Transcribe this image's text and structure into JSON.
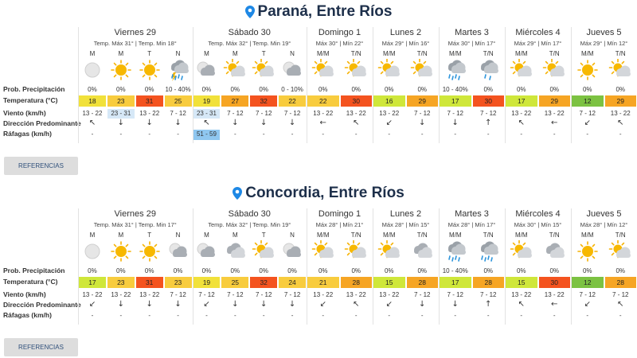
{
  "row_labels": [
    "Prob. Precipitación",
    "Temperatura (°C)",
    "Viento (km/h)",
    "Dirección Predominante",
    "Ráfagas (km/h)"
  ],
  "locations": [
    {
      "title": "Paraná, Entre Ríos",
      "button": "REFERENCIAS",
      "days": [
        {
          "name": "Viernes 29",
          "summary": "Temp. Máx 31° | Temp. Min 18°",
          "periods": [
            "M",
            "M",
            "T",
            "N"
          ],
          "precipitation": [
            "0%",
            "0%",
            "0%",
            "10 - 40%"
          ],
          "temperature": [
            18,
            23,
            31,
            25
          ],
          "wind": [
            "13 - 22",
            "23 - 31",
            "13 - 22",
            "7 - 12"
          ],
          "direction": [
            "↖",
            "↓",
            "↓",
            "↓"
          ],
          "gusts": [
            "-",
            "-",
            "-",
            "-"
          ]
        },
        {
          "name": "Sábado 30",
          "summary": "Temp. Máx 32° | Temp. Min 19°",
          "periods": [
            "M",
            "M",
            "T",
            "N"
          ],
          "precipitation": [
            "0%",
            "0%",
            "0%",
            "0 - 10%"
          ],
          "temperature": [
            19,
            27,
            32,
            22
          ],
          "wind": [
            "23 - 31",
            "7 - 12",
            "7 - 12",
            "7 - 12"
          ],
          "direction": [
            "↖",
            "↓",
            "↓",
            "↓"
          ],
          "gusts": [
            "51 - 59",
            "-",
            "-",
            "-"
          ]
        },
        {
          "name": "Domingo 1",
          "summary": "Máx 30° | Mín 22°",
          "periods": [
            "M/M",
            "T/N"
          ],
          "precipitation": [
            "0%",
            "0%"
          ],
          "temperature": [
            22,
            30
          ],
          "wind": [
            "13 - 22",
            "13 - 22"
          ],
          "direction": [
            "←",
            "↖"
          ],
          "gusts": [
            "-",
            "-"
          ]
        },
        {
          "name": "Lunes 2",
          "summary": "Máx 29° | Mín 16°",
          "periods": [
            "M/M",
            "T/N"
          ],
          "precipitation": [
            "0%",
            "0%"
          ],
          "temperature": [
            16,
            29
          ],
          "wind": [
            "13 - 22",
            "7 - 12"
          ],
          "direction": [
            "↙",
            "↓"
          ],
          "gusts": [
            "-",
            "-"
          ]
        },
        {
          "name": "Martes 3",
          "summary": "Máx 30° | Mín 17°",
          "periods": [
            "M/M",
            "T/N"
          ],
          "precipitation": [
            "10 - 40%",
            "0%"
          ],
          "temperature": [
            17,
            30
          ],
          "wind": [
            "7 - 12",
            "7 - 12"
          ],
          "direction": [
            "↓",
            "↑"
          ],
          "gusts": [
            "-",
            "-"
          ]
        },
        {
          "name": "Miércoles 4",
          "summary": "Máx 29° | Mín 17°",
          "periods": [
            "M/M",
            "T/N"
          ],
          "precipitation": [
            "0%",
            "0%"
          ],
          "temperature": [
            17,
            29
          ],
          "wind": [
            "13 - 22",
            "13 - 22"
          ],
          "direction": [
            "↖",
            "←"
          ],
          "gusts": [
            "-",
            "-"
          ]
        },
        {
          "name": "Jueves 5",
          "summary": "Máx 29° | Mín 12°",
          "periods": [
            "M/M",
            "T/N"
          ],
          "precipitation": [
            "0%",
            "0%"
          ],
          "temperature": [
            12,
            29
          ],
          "wind": [
            "7 - 12",
            "13 - 22"
          ],
          "direction": [
            "↙",
            "↖"
          ],
          "gusts": [
            "-",
            "-"
          ]
        }
      ]
    },
    {
      "title": "Concordia, Entre Ríos",
      "button": "REFERENCIAS",
      "days": [
        {
          "name": "Viernes 29",
          "summary": "Temp. Máx 31° | Temp. Min 17°",
          "periods": [
            "M",
            "M",
            "T",
            "N"
          ],
          "precipitation": [
            "0%",
            "0%",
            "0%",
            "0%"
          ],
          "temperature": [
            17,
            23,
            31,
            23
          ],
          "wind": [
            "13 - 22",
            "13 - 22",
            "13 - 22",
            "7 - 12"
          ],
          "direction": [
            "↙",
            "↓",
            "↓",
            "↓"
          ],
          "gusts": [
            "-",
            "-",
            "-",
            "-"
          ]
        },
        {
          "name": "Sábado 30",
          "summary": "Temp. Máx 32° | Temp. Min 19°",
          "periods": [
            "M",
            "M",
            "T",
            "N"
          ],
          "precipitation": [
            "0%",
            "0%",
            "0%",
            "0%"
          ],
          "temperature": [
            19,
            25,
            32,
            24
          ],
          "wind": [
            "7 - 12",
            "7 - 12",
            "7 - 12",
            "7 - 12"
          ],
          "direction": [
            "↙",
            "↓",
            "↓",
            "↓"
          ],
          "gusts": [
            "-",
            "-",
            "-",
            "-"
          ]
        },
        {
          "name": "Domingo 1",
          "summary": "Máx 28° | Mín 21°",
          "periods": [
            "M/M",
            "T/N"
          ],
          "precipitation": [
            "0%",
            "0%"
          ],
          "temperature": [
            21,
            28
          ],
          "wind": [
            "13 - 22",
            "13 - 22"
          ],
          "direction": [
            "↙",
            "↖"
          ],
          "gusts": [
            "-",
            "-"
          ]
        },
        {
          "name": "Lunes 2",
          "summary": "Máx 28° | Mín 15°",
          "periods": [
            "M/M",
            "T/N"
          ],
          "precipitation": [
            "0%",
            "0%"
          ],
          "temperature": [
            15,
            28
          ],
          "wind": [
            "13 - 22",
            "7 - 12"
          ],
          "direction": [
            "↙",
            "↓"
          ],
          "gusts": [
            "-",
            "-"
          ]
        },
        {
          "name": "Martes 3",
          "summary": "Máx 28° | Mín 17°",
          "periods": [
            "M/M",
            "T/N"
          ],
          "precipitation": [
            "10 - 40%",
            "0%"
          ],
          "temperature": [
            17,
            28
          ],
          "wind": [
            "7 - 12",
            "7 - 12"
          ],
          "direction": [
            "↓",
            "↑"
          ],
          "gusts": [
            "-",
            "-"
          ]
        },
        {
          "name": "Miércoles 4",
          "summary": "Máx 30° | Mín 15°",
          "periods": [
            "M/M",
            "T/N"
          ],
          "precipitation": [
            "0%",
            "0%"
          ],
          "temperature": [
            15,
            30
          ],
          "wind": [
            "13 - 22",
            "13 - 22"
          ],
          "direction": [
            "↖",
            "←"
          ],
          "gusts": [
            "-",
            "-"
          ]
        },
        {
          "name": "Jueves 5",
          "summary": "Máx 28° | Mín 12°",
          "periods": [
            "M/M",
            "T/N"
          ],
          "precipitation": [
            "0%",
            "0%"
          ],
          "temperature": [
            12,
            28
          ],
          "wind": [
            "7 - 12",
            "7 - 12"
          ],
          "direction": [
            "↙",
            "↖"
          ],
          "gusts": [
            "-",
            "-"
          ]
        }
      ]
    }
  ]
}
